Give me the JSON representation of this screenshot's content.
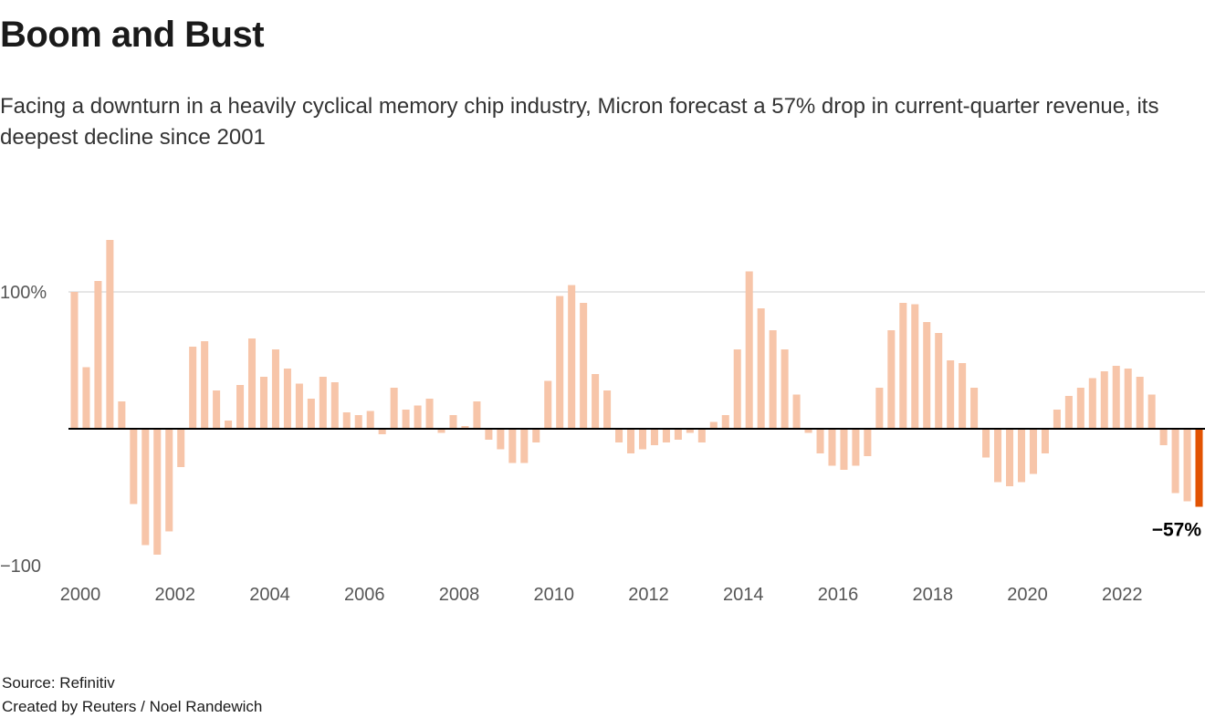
{
  "chart": {
    "title": "Boom and Bust",
    "subtitle": "Facing a downturn in a heavily cyclical memory chip industry, Micron forecast a 57% drop in current-quarter revenue, its deepest decline since 2001",
    "source": "Source: Refinitiv",
    "credit": "Created by Reuters / Noel Randewich"
  },
  "colors": {
    "bar": "#f7c5a9",
    "highlight": "#e25303",
    "gridline": "#cccccc",
    "baseline": "#000000"
  },
  "chart_data": {
    "type": "bar",
    "title": "Boom and Bust",
    "subtitle": "Facing a downturn in a heavily cyclical memory chip industry, Micron forecast a 57% drop in current-quarter revenue, its deepest decline since 2001",
    "start_year": 2000,
    "frequency": "quarterly",
    "values": [
      100,
      45,
      108,
      138,
      20,
      -55,
      -85,
      -92,
      -75,
      -28,
      60,
      64,
      28,
      6,
      32,
      66,
      38,
      58,
      44,
      33,
      22,
      38,
      34,
      12,
      10,
      13,
      -4,
      30,
      14,
      17,
      22,
      -3,
      10,
      2,
      20,
      -8,
      -15,
      -25,
      -25,
      -10,
      35,
      97,
      105,
      92,
      40,
      28,
      -10,
      -18,
      -15,
      -12,
      -10,
      -8,
      -3,
      -10,
      5,
      10,
      58,
      115,
      88,
      72,
      58,
      25,
      -3,
      -18,
      -27,
      -30,
      -27,
      -20,
      30,
      72,
      92,
      91,
      78,
      70,
      50,
      48,
      30,
      -21,
      -39,
      -42,
      -39,
      -33,
      -18,
      14,
      24,
      30,
      37,
      42,
      46,
      44,
      38,
      25,
      -12,
      -47,
      -53,
      -57
    ],
    "highlight_last": true,
    "ylim": [
      -110,
      145
    ],
    "y_ticks": [
      {
        "label": "100%",
        "value": 100,
        "gridline": true
      },
      {
        "label": "−100",
        "value": -100,
        "gridline": false
      }
    ],
    "tick_years": [
      2000,
      2002,
      2004,
      2006,
      2008,
      2010,
      2012,
      2014,
      2016,
      2018,
      2020,
      2022
    ],
    "annotation": {
      "label": "−57%",
      "value": -57
    }
  }
}
